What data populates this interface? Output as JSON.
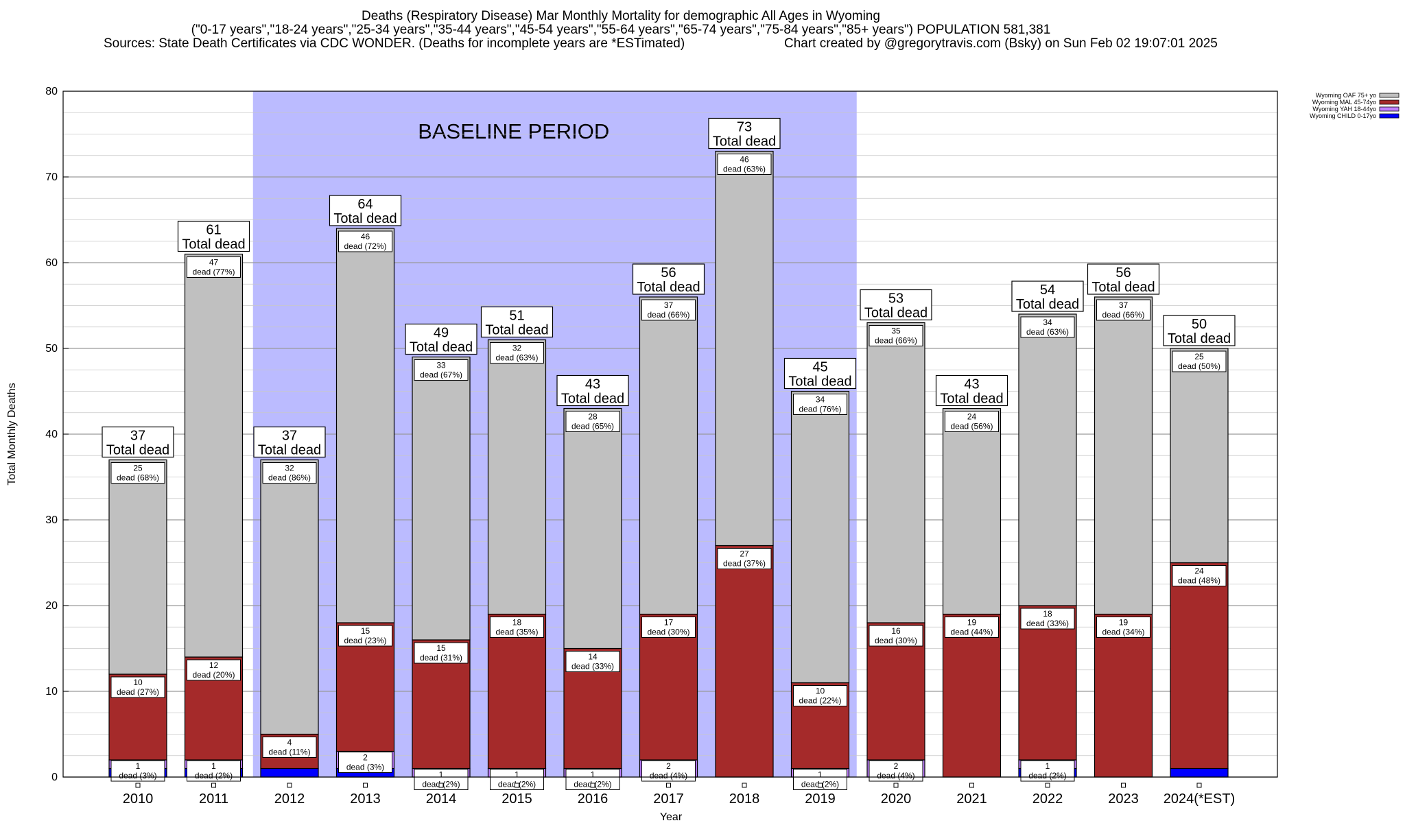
{
  "title": {
    "line1": "Deaths (Respiratory Disease) Mar Monthly Mortality for demographic All Ages in Wyoming",
    "line2": "(\"0-17 years\",\"18-24 years\",\"25-34 years\",\"35-44 years\",\"45-54 years\",\"55-64 years\",\"65-74 years\",\"75-84 years\",\"85+ years\") POPULATION 581,381",
    "line3_left": "Sources: State Death Certificates via CDC WONDER. (Deaths for incomplete years are *ESTimated)",
    "line3_right": "Chart created by @gregorytravis.com (Bsky) on Sun Feb 02 19:07:01 2025"
  },
  "colors": {
    "baseline": "#bbbbff",
    "oaf": "#c0c0c0",
    "mal": "#a52a2a",
    "yah": "#c080ff",
    "child": "#0000ff"
  },
  "chart_data": {
    "type": "bar",
    "stacked": true,
    "xlabel": "Year",
    "ylabel": "Total Monthly Deaths",
    "ylim": [
      0,
      80
    ],
    "yticks": [
      0,
      10,
      20,
      30,
      40,
      50,
      60,
      70,
      80
    ],
    "grid": true,
    "legend_position": "top-right",
    "baseline_label": "BASELINE PERIOD",
    "baseline_range": [
      "2012",
      "2019"
    ],
    "total_suffix": "Total dead",
    "categories": [
      "2010",
      "2011",
      "2012",
      "2013",
      "2014",
      "2015",
      "2016",
      "2017",
      "2018",
      "2019",
      "2020",
      "2021",
      "2022",
      "2023",
      "2024(*EST)"
    ],
    "totals": [
      37,
      61,
      37,
      64,
      49,
      51,
      43,
      56,
      73,
      45,
      53,
      43,
      54,
      56,
      50
    ],
    "series": [
      {
        "name": "Wyoming CHILD 0-17yo",
        "color": "#0000ff",
        "values": [
          1,
          1,
          1,
          1,
          0,
          0,
          0,
          0,
          0,
          0,
          0,
          0,
          1,
          0,
          1
        ]
      },
      {
        "name": "Wyoming YAH 18-44yo",
        "color": "#c080ff",
        "values": [
          1,
          1,
          0,
          2,
          1,
          1,
          1,
          2,
          0,
          1,
          2,
          0,
          1,
          0,
          0
        ]
      },
      {
        "name": "Wyoming MAL 45-74yo",
        "color": "#a52a2a",
        "values": [
          10,
          12,
          4,
          15,
          15,
          18,
          14,
          17,
          27,
          10,
          16,
          19,
          18,
          19,
          24
        ]
      },
      {
        "name": "Wyoming OAF 75+ yo",
        "color": "#c0c0c0",
        "values": [
          25,
          47,
          32,
          46,
          33,
          32,
          28,
          37,
          46,
          34,
          35,
          24,
          34,
          37,
          25
        ]
      }
    ],
    "labels": {
      "oaf": [
        "25|dead (68%)",
        "47|dead (77%)",
        "32|dead (86%)",
        "46|dead (72%)",
        "33|dead (67%)",
        "32|dead (63%)",
        "28|dead (65%)",
        "37|dead (66%)",
        "46|dead (63%)",
        "34|dead (76%)",
        "35|dead (66%)",
        "24|dead (56%)",
        "34|dead (63%)",
        "37|dead (66%)",
        "25|dead (50%)"
      ],
      "mal": [
        "10|dead (27%)",
        "12|dead (20%)",
        "4|dead (11%)",
        "15|dead (23%)",
        "15|dead (31%)",
        "18|dead (35%)",
        "14|dead (33%)",
        "17|dead (30%)",
        "27|dead (37%)",
        "10|dead (22%)",
        "16|dead (30%)",
        "19|dead (44%)",
        "18|dead (33%)",
        "19|dead (34%)",
        "24|dead (48%)"
      ],
      "yah": [
        "1|dead (3%)",
        "1|dead (2%)",
        "",
        "2|dead (3%)",
        "1|dead (2%)",
        "1|dead (2%)",
        "1|dead (2%)",
        "2|dead (4%)",
        "",
        "1|dead (2%)",
        "2|dead (4%)",
        "",
        "1|dead (2%)",
        "",
        ""
      ]
    }
  }
}
